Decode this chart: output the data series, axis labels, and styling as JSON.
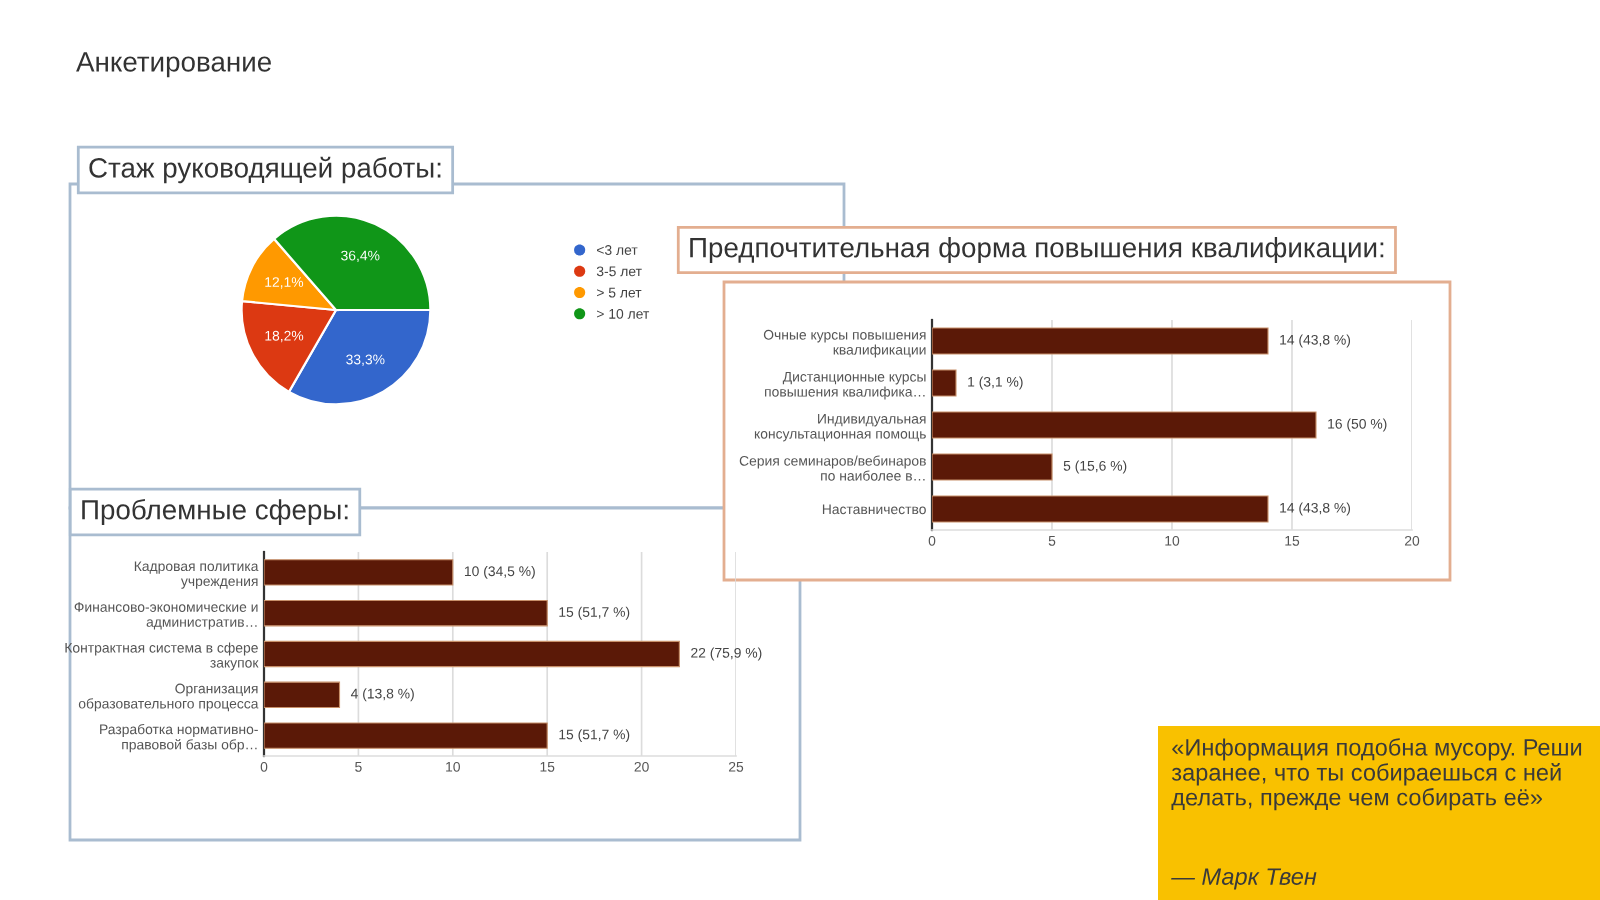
{
  "chart_data": [
    {
      "type": "other",
      "title": "Анкетирование"
    },
    {
      "type": "pie",
      "title": "Стаж руководящей работы:",
      "categories": [
        "<3 лет",
        "3-5 лет",
        "> 5 лет",
        "> 10 лет"
      ],
      "values": [
        33.3,
        18.2,
        12.1,
        36.4
      ],
      "colors": [
        "#3366cc",
        "#dc3912",
        "#ff9900",
        "#109618"
      ],
      "value_labels": [
        "33,3%",
        "18,2%",
        "12,1%",
        "36,4%"
      ],
      "legend": "right"
    },
    {
      "type": "bar",
      "orientation": "horizontal",
      "title": "Предпочтительная форма повышения квалификации:",
      "categories": [
        "Очные курсы повышения\nквалификации",
        "Дистанционные курсы\nповышения квалифика…",
        "Индивидуальная\nконсультационная помощь",
        "Серия семинаров/вебинаров\nпо наиболее в…",
        "Наставничество"
      ],
      "values": [
        14,
        1,
        16,
        5,
        14
      ],
      "color": "#5b1907",
      "value_labels": [
        "14 (43,8 %)",
        "1 (3,1 %)",
        "16 (50 %)",
        "5 (15,6 %)",
        "14 (43,8 %)"
      ],
      "xlim": [
        0,
        20
      ],
      "xticks": [
        0,
        5,
        10,
        15,
        20
      ],
      "grid": "x"
    },
    {
      "type": "bar",
      "orientation": "horizontal",
      "title": "Проблемные сферы:",
      "categories": [
        "Кадровая политика\nучреждения",
        "Финансово-экономические и\nадминистратив…",
        "Контрактная система в сфере\nзакупок",
        "Организация\nобразовательного процесса",
        "Разработка нормативно-\nправовой базы обр…"
      ],
      "values": [
        10,
        15,
        22,
        4,
        15
      ],
      "color": "#5b1907",
      "value_labels": [
        "10 (34,5 %)",
        "15 (51,7 %)",
        "22 (75,9 %)",
        "4 (13,8 %)",
        "15 (51,7 %)"
      ],
      "xlim": [
        0,
        25
      ],
      "xticks": [
        0,
        5,
        10,
        15,
        20,
        25
      ],
      "grid": "x"
    },
    {
      "type": "other",
      "annotations": [
        "«Информация подобна мусору. Реши заранее, что ты собираешься с ней делать, прежде чем собирать её»",
        "— Марк Твен"
      ]
    }
  ]
}
